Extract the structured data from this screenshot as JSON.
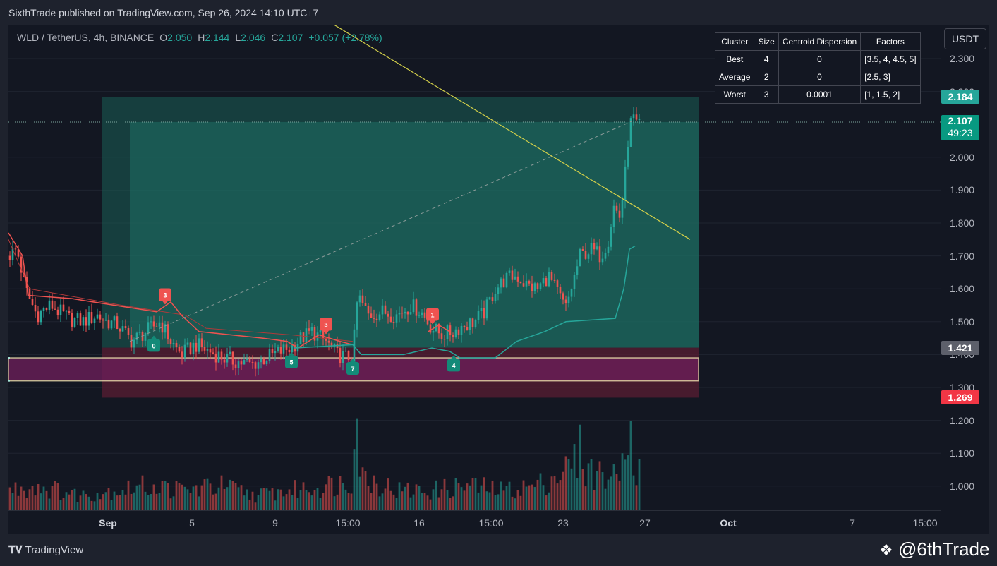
{
  "header": {
    "published": "SixthTrade published on TradingView.com, Sep 26, 2024 14:10 UTC+7",
    "symbol": "WLD / TetherUS, 4h, BINANCE",
    "ohlc": [
      {
        "k": "O",
        "v": "2.050"
      },
      {
        "k": "H",
        "v": "2.144"
      },
      {
        "k": "L",
        "v": "2.046"
      },
      {
        "k": "C",
        "v": "2.107"
      }
    ],
    "change": "+0.057 (+2.78%)"
  },
  "currency_button": "USDT",
  "price_labels": [
    {
      "value": "2.184",
      "color": "#26a69a"
    },
    {
      "value": "2.107",
      "sub": "49:23",
      "color": "#089981"
    },
    {
      "value": "1.421",
      "color": "#5d606b"
    },
    {
      "value": "1.269",
      "color": "#f23645"
    }
  ],
  "cluster_table": {
    "headers": [
      "Cluster",
      "Size",
      "Centroid Dispersion",
      "Factors"
    ],
    "rows": [
      [
        "Best",
        "4",
        "0",
        "[3.5, 4, 4.5, 5]"
      ],
      [
        "Average",
        "2",
        "0",
        "[2.5, 3]"
      ],
      [
        "Worst",
        "3",
        "0.0001",
        "[1, 1.5, 2]"
      ]
    ]
  },
  "chart_data": {
    "type": "candlestick",
    "ylim": [
      0.985,
      2.38
    ],
    "y_ticks": [
      "2.300",
      "2.200",
      "2.000",
      "1.900",
      "1.800",
      "1.700",
      "1.600",
      "1.500",
      "1.400",
      "1.300",
      "1.200",
      "1.100",
      "1.000"
    ],
    "x_ticks": [
      {
        "label": "Sep",
        "bold": true
      },
      {
        "label": "5"
      },
      {
        "label": "9"
      },
      {
        "label": "15:00"
      },
      {
        "label": "16"
      },
      {
        "label": "15:00"
      },
      {
        "label": "23"
      },
      {
        "label": "27"
      },
      {
        "label": "Oct",
        "bold": true
      },
      {
        "label": "7"
      },
      {
        "label": "15:00"
      }
    ],
    "close_path": [
      [
        0,
        1.7
      ],
      [
        12,
        1.72
      ],
      [
        24,
        1.6
      ],
      [
        40,
        1.52
      ],
      [
        60,
        1.55
      ],
      [
        85,
        1.51
      ],
      [
        105,
        1.5
      ],
      [
        125,
        1.52
      ],
      [
        140,
        1.5
      ],
      [
        155,
        1.49
      ],
      [
        175,
        1.44
      ],
      [
        195,
        1.47
      ],
      [
        215,
        1.5
      ],
      [
        230,
        1.44
      ],
      [
        245,
        1.4
      ],
      [
        265,
        1.43
      ],
      [
        285,
        1.41
      ],
      [
        305,
        1.39
      ],
      [
        320,
        1.38
      ],
      [
        345,
        1.37
      ],
      [
        365,
        1.39
      ],
      [
        385,
        1.41
      ],
      [
        400,
        1.42
      ],
      [
        415,
        1.45
      ],
      [
        430,
        1.47
      ],
      [
        450,
        1.44
      ],
      [
        465,
        1.4
      ],
      [
        480,
        1.39
      ],
      [
        488,
        1.4
      ],
      [
        495,
        1.58
      ],
      [
        510,
        1.52
      ],
      [
        530,
        1.53
      ],
      [
        550,
        1.52
      ],
      [
        570,
        1.55
      ],
      [
        585,
        1.53
      ],
      [
        600,
        1.48
      ],
      [
        615,
        1.46
      ],
      [
        630,
        1.47
      ],
      [
        645,
        1.49
      ],
      [
        660,
        1.5
      ],
      [
        675,
        1.53
      ],
      [
        690,
        1.6
      ],
      [
        705,
        1.63
      ],
      [
        720,
        1.64
      ],
      [
        735,
        1.61
      ],
      [
        750,
        1.6
      ],
      [
        765,
        1.64
      ],
      [
        780,
        1.58
      ],
      [
        790,
        1.54
      ],
      [
        800,
        1.62
      ],
      [
        810,
        1.7
      ],
      [
        825,
        1.72
      ],
      [
        840,
        1.7
      ],
      [
        850,
        1.75
      ],
      [
        858,
        1.85
      ],
      [
        866,
        1.82
      ],
      [
        872,
        1.9
      ],
      [
        878,
        2.05
      ],
      [
        884,
        2.13
      ],
      [
        890,
        2.09
      ],
      [
        896,
        2.107
      ]
    ],
    "volume_path": [
      [
        0,
        0.04
      ],
      [
        40,
        0.05
      ],
      [
        100,
        0.03
      ],
      [
        150,
        0.04
      ],
      [
        200,
        0.05
      ],
      [
        250,
        0.04
      ],
      [
        300,
        0.05
      ],
      [
        350,
        0.03
      ],
      [
        400,
        0.04
      ],
      [
        450,
        0.05
      ],
      [
        488,
        0.06
      ],
      [
        490,
        0.24
      ],
      [
        500,
        0.07
      ],
      [
        550,
        0.04
      ],
      [
        600,
        0.04
      ],
      [
        650,
        0.05
      ],
      [
        700,
        0.04
      ],
      [
        750,
        0.05
      ],
      [
        800,
        0.09
      ],
      [
        810,
        0.12
      ],
      [
        820,
        0.08
      ],
      [
        850,
        0.07
      ],
      [
        866,
        0.06
      ],
      [
        872,
        0.19
      ],
      [
        878,
        0.21
      ],
      [
        884,
        0.12
      ],
      [
        890,
        0.09
      ],
      [
        896,
        0.07
      ]
    ],
    "supertrend_upper": [
      [
        0,
        1.77
      ],
      [
        20,
        1.7
      ],
      [
        28,
        1.58
      ],
      [
        90,
        1.57
      ],
      [
        180,
        1.54
      ],
      [
        210,
        1.53
      ],
      [
        230,
        1.56
      ],
      [
        245,
        1.52
      ],
      [
        270,
        1.47
      ],
      [
        360,
        1.45
      ],
      [
        395,
        1.44
      ],
      [
        410,
        1.42
      ],
      [
        440,
        1.46
      ],
      [
        455,
        1.45
      ],
      [
        470,
        1.44
      ],
      [
        488,
        1.43
      ]
    ],
    "supertrend_upper2": [
      [
        0,
        1.75
      ],
      [
        30,
        1.6
      ],
      [
        160,
        1.55
      ],
      [
        250,
        1.52
      ],
      [
        280,
        1.48
      ],
      [
        400,
        1.46
      ],
      [
        488,
        1.44
      ]
    ],
    "supertrend_lower": [
      [
        405,
        1.42
      ],
      [
        488,
        1.43
      ],
      [
        500,
        1.4
      ],
      [
        560,
        1.4
      ],
      [
        600,
        1.42
      ],
      [
        625,
        1.41
      ],
      [
        640,
        1.39
      ],
      [
        690,
        1.39
      ],
      [
        720,
        1.44
      ],
      [
        760,
        1.47
      ],
      [
        790,
        1.5
      ],
      [
        860,
        1.51
      ],
      [
        872,
        1.6
      ],
      [
        880,
        1.72
      ],
      [
        888,
        1.73
      ]
    ],
    "red_segments": [
      [
        [
          595,
          1.47
        ],
        [
          610,
          1.49
        ],
        [
          625,
          1.47
        ]
      ]
    ],
    "signals": [
      {
        "label": "3",
        "x": 222,
        "y": 1.58,
        "type": "sell"
      },
      {
        "label": "0",
        "x": 206,
        "y": 1.43,
        "type": "buy"
      },
      {
        "label": "3",
        "x": 450,
        "y": 1.49,
        "type": "sell"
      },
      {
        "label": "5",
        "x": 401,
        "y": 1.38,
        "type": "buy"
      },
      {
        "label": "7",
        "x": 488,
        "y": 1.36,
        "type": "buy"
      },
      {
        "label": "1",
        "x": 601,
        "y": 1.52,
        "type": "sell"
      },
      {
        "label": "4",
        "x": 631,
        "y": 1.37,
        "type": "buy"
      }
    ],
    "long_position": {
      "x_start": 133,
      "x_entry": 172,
      "x_end": 978,
      "target": 2.184,
      "entry": 2.107,
      "stop": 1.421,
      "stop_bottom": 1.269
    },
    "range_box": {
      "x_start": 0,
      "x_end": 978,
      "top": 1.39,
      "bottom": 1.32
    },
    "trend_line": [
      [
        425,
        2.45
      ],
      [
        966,
        1.75
      ]
    ],
    "dashed_line": [
      [
        172,
        1.44
      ],
      [
        884,
        2.11
      ]
    ]
  },
  "footer": {
    "logo": "TradingView",
    "brand": "@6thTrade"
  }
}
